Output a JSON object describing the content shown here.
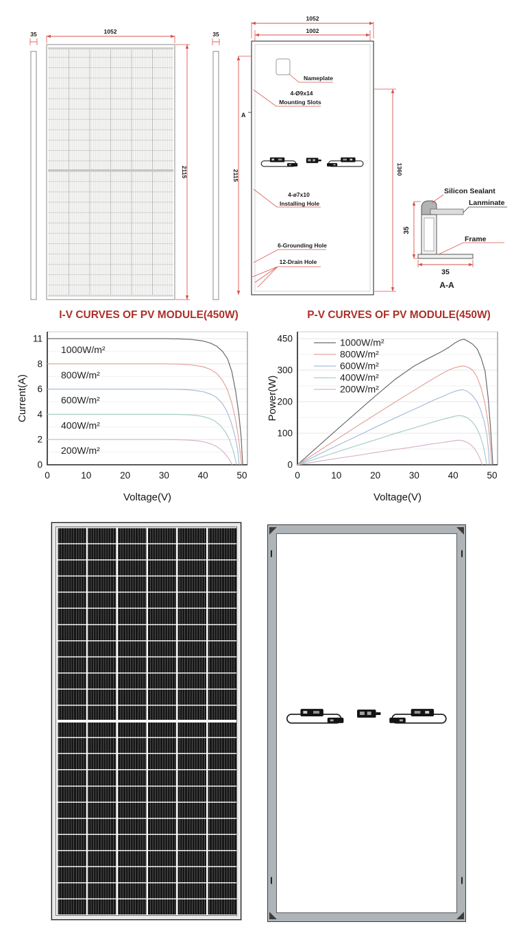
{
  "page": {
    "background": "#ffffff"
  },
  "colors": {
    "title_red": "#AD2F28",
    "dimension_red": "#D9534C",
    "drawing_line": "#4a4a4a",
    "panel_cell_black": "#161616",
    "frame_gray": "#aeb4b7"
  },
  "drawings": {
    "front": {
      "thickness": "35",
      "width": "1052",
      "height": "2115"
    },
    "back": {
      "thickness": "35",
      "height": "2115",
      "outer_width": "1052",
      "inner_width": "1002",
      "slot_span": "1360",
      "section_mark": "A",
      "nameplate": "Nameplate",
      "mounting_line1": "4-Ø9x14",
      "mounting_line2": "Mounting Slots",
      "installing_line1": "4-ø7x10",
      "installing_line2": "Installing Hole",
      "grounding": "6-Grounding Hole",
      "drain": "12-Drain Hole"
    },
    "section": {
      "sealant": "Silicon Sealant",
      "laminate": "Lanminate",
      "frame": "Frame",
      "height": "35",
      "width": "35",
      "title": "A-A"
    }
  },
  "chart_data": [
    {
      "type": "line",
      "title": "I-V CURVES OF PV MODULE(450W)",
      "xlabel": "Voltage(V)",
      "ylabel": "Current(A)",
      "xlim": [
        0,
        50
      ],
      "xticks": [
        0,
        10,
        20,
        30,
        40,
        50
      ],
      "yticks": [
        0,
        2,
        4,
        6,
        8,
        11
      ],
      "grid": "horizontal",
      "legend_position": "inline",
      "series": [
        {
          "name": "1000W/m²",
          "color": "#6a6a6d",
          "points": [
            [
              0,
              11
            ],
            [
              20,
              11
            ],
            [
              30,
              11
            ],
            [
              34,
              10.97
            ],
            [
              37,
              10.9
            ],
            [
              40,
              10.72
            ],
            [
              42,
              10.45
            ],
            [
              43.5,
              10.1
            ],
            [
              45,
              9.5
            ],
            [
              46.3,
              8.6
            ],
            [
              47.4,
              7.4
            ],
            [
              48.4,
              5.8
            ],
            [
              49.2,
              4.0
            ],
            [
              49.8,
              2.2
            ],
            [
              50.2,
              0
            ]
          ]
        },
        {
          "name": "800W/m²",
          "color": "#e4a39c",
          "points": [
            [
              0,
              8
            ],
            [
              20,
              8
            ],
            [
              30,
              8
            ],
            [
              34,
              7.98
            ],
            [
              37,
              7.92
            ],
            [
              40,
              7.77
            ],
            [
              42,
              7.55
            ],
            [
              43.5,
              7.25
            ],
            [
              45,
              6.7
            ],
            [
              46.2,
              6.0
            ],
            [
              47.3,
              5.0
            ],
            [
              48.3,
              3.7
            ],
            [
              49.1,
              2.2
            ],
            [
              49.6,
              0.9
            ],
            [
              49.9,
              0
            ]
          ]
        },
        {
          "name": "600W/m²",
          "color": "#a8bdda",
          "points": [
            [
              0,
              6
            ],
            [
              20,
              6
            ],
            [
              30,
              6
            ],
            [
              34,
              5.98
            ],
            [
              37,
              5.93
            ],
            [
              40,
              5.8
            ],
            [
              42,
              5.6
            ],
            [
              43.5,
              5.33
            ],
            [
              45,
              4.85
            ],
            [
              46.2,
              4.2
            ],
            [
              47.2,
              3.4
            ],
            [
              48.2,
              2.3
            ],
            [
              48.9,
              1.2
            ],
            [
              49.3,
              0
            ]
          ]
        },
        {
          "name": "400W/m²",
          "color": "#a5cfc9",
          "points": [
            [
              0,
              4
            ],
            [
              20,
              4
            ],
            [
              30,
              4
            ],
            [
              34,
              3.99
            ],
            [
              37,
              3.95
            ],
            [
              39.5,
              3.86
            ],
            [
              41.5,
              3.7
            ],
            [
              43,
              3.48
            ],
            [
              44.5,
              3.1
            ],
            [
              45.8,
              2.6
            ],
            [
              46.8,
              2.0
            ],
            [
              47.8,
              1.1
            ],
            [
              48.4,
              0.3
            ],
            [
              48.6,
              0
            ]
          ]
        },
        {
          "name": "200W/m²",
          "color": "#d8b3ce",
          "points": [
            [
              0,
              2
            ],
            [
              20,
              2
            ],
            [
              30,
              2
            ],
            [
              33,
              1.99
            ],
            [
              36,
              1.96
            ],
            [
              38.5,
              1.9
            ],
            [
              40.5,
              1.8
            ],
            [
              42,
              1.66
            ],
            [
              43.5,
              1.45
            ],
            [
              45,
              1.1
            ],
            [
              46,
              0.75
            ],
            [
              47,
              0.3
            ],
            [
              47.5,
              0
            ]
          ]
        }
      ]
    },
    {
      "type": "line",
      "title": "P-V CURVES OF PV MODULE(450W)",
      "xlabel": "Voltage(V)",
      "ylabel": "Power(W)",
      "xlim": [
        0,
        50
      ],
      "xticks": [
        0,
        10,
        20,
        30,
        40,
        50
      ],
      "yticks": [
        0,
        100,
        200,
        300,
        450
      ],
      "grid": "horizontal",
      "legend_position": "top-left",
      "series": [
        {
          "name": "1000W/m²",
          "color": "#6a6a6d",
          "points": [
            [
              0,
              0
            ],
            [
              5,
              55
            ],
            [
              10,
              110
            ],
            [
              15,
              164
            ],
            [
              20,
              218
            ],
            [
              25,
              270
            ],
            [
              30,
              320
            ],
            [
              33,
              350
            ],
            [
              35,
              369
            ],
            [
              37,
              388
            ],
            [
              39,
              410
            ],
            [
              40.5,
              430
            ],
            [
              41.8,
              443
            ],
            [
              42.8,
              447
            ],
            [
              43.8,
              438
            ],
            [
              45,
              424
            ],
            [
              46.2,
              400
            ],
            [
              47.2,
              357
            ],
            [
              48.2,
              297
            ],
            [
              49,
              212
            ],
            [
              49.6,
              118
            ],
            [
              50,
              40
            ],
            [
              50.2,
              0
            ]
          ]
        },
        {
          "name": "800W/m²",
          "color": "#e4a39c",
          "points": [
            [
              0,
              0
            ],
            [
              5,
              40
            ],
            [
              10,
              80
            ],
            [
              15,
              120
            ],
            [
              20,
              159
            ],
            [
              25,
              198
            ],
            [
              30,
              236
            ],
            [
              33,
              259
            ],
            [
              35,
              274
            ],
            [
              37,
              288
            ],
            [
              39,
              302
            ],
            [
              40.5,
              312
            ],
            [
              41.8,
              318
            ],
            [
              42.8,
              320
            ],
            [
              43.8,
              314
            ],
            [
              45,
              301
            ],
            [
              46.2,
              277
            ],
            [
              47.2,
              243
            ],
            [
              48.2,
              193
            ],
            [
              49,
              130
            ],
            [
              49.5,
              70
            ],
            [
              49.9,
              0
            ]
          ]
        },
        {
          "name": "600W/m²",
          "color": "#a8bdda",
          "points": [
            [
              0,
              0
            ],
            [
              5,
              30
            ],
            [
              10,
              60
            ],
            [
              15,
              89
            ],
            [
              20,
              119
            ],
            [
              25,
              148
            ],
            [
              30,
              176
            ],
            [
              33,
              193
            ],
            [
              35,
              205
            ],
            [
              37,
              215
            ],
            [
              39,
              226
            ],
            [
              40.5,
              233
            ],
            [
              41.6,
              237
            ],
            [
              42.6,
              238
            ],
            [
              43.6,
              233
            ],
            [
              44.8,
              222
            ],
            [
              46,
              203
            ],
            [
              47,
              176
            ],
            [
              48,
              137
            ],
            [
              48.7,
              92
            ],
            [
              49.1,
              45
            ],
            [
              49.3,
              0
            ]
          ]
        },
        {
          "name": "400W/m²",
          "color": "#a5cfc9",
          "points": [
            [
              0,
              0
            ],
            [
              5,
              20
            ],
            [
              10,
              40
            ],
            [
              15,
              60
            ],
            [
              20,
              79
            ],
            [
              25,
              99
            ],
            [
              30,
              117
            ],
            [
              33,
              128
            ],
            [
              35,
              136
            ],
            [
              37,
              143
            ],
            [
              39,
              149
            ],
            [
              40.3,
              154
            ],
            [
              41.4,
              156
            ],
            [
              42.4,
              155
            ],
            [
              43.5,
              150
            ],
            [
              44.7,
              139
            ],
            [
              45.8,
              122
            ],
            [
              46.8,
              97
            ],
            [
              47.7,
              62
            ],
            [
              48.3,
              25
            ],
            [
              48.6,
              0
            ]
          ]
        },
        {
          "name": "200W/m²",
          "color": "#d8b3ce",
          "points": [
            [
              0,
              0
            ],
            [
              5,
              10
            ],
            [
              10,
              20
            ],
            [
              15,
              29
            ],
            [
              20,
              39
            ],
            [
              25,
              48
            ],
            [
              30,
              57
            ],
            [
              33,
              63
            ],
            [
              35,
              67
            ],
            [
              37,
              70
            ],
            [
              39,
              74
            ],
            [
              40.3,
              76
            ],
            [
              41.3,
              78
            ],
            [
              42.3,
              77
            ],
            [
              43.3,
              73
            ],
            [
              44.3,
              66
            ],
            [
              45.3,
              54
            ],
            [
              46.2,
              38
            ],
            [
              47,
              16
            ],
            [
              47.5,
              0
            ]
          ]
        }
      ]
    }
  ]
}
